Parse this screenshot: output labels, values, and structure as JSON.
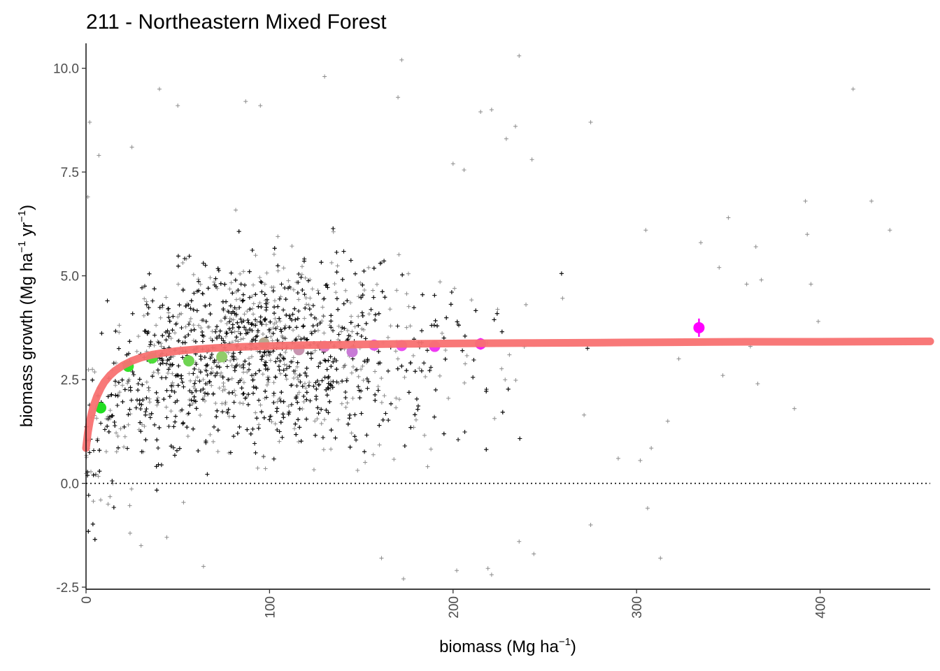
{
  "chart_data": {
    "type": "scatter",
    "title": "211 - Northeastern Mixed Forest",
    "xlabel": {
      "main": "biomass (Mg ha",
      "sup": "−1",
      "close": ")"
    },
    "ylabel": {
      "main": "biomass growth (Mg ha",
      "sup1": "−1",
      "mid": " yr",
      "sup2": "−1",
      "close": ")"
    },
    "xlim": [
      0,
      460
    ],
    "ylim": [
      -2.55,
      10.6
    ],
    "x_ticks": [
      0,
      100,
      200,
      300,
      400
    ],
    "x_tick_labels": [
      "0",
      "100",
      "200",
      "300",
      "400"
    ],
    "y_ticks": [
      -2.5,
      0,
      2.5,
      5,
      7.5,
      10
    ],
    "y_tick_labels": [
      "-2.5",
      "0.0",
      "2.5",
      "5.0",
      "7.5",
      "10.0"
    ],
    "grid": false,
    "reference_line": {
      "y": 0,
      "style": "dotted",
      "color": "#000000"
    },
    "raw_points": {
      "marker": "plus",
      "color": "#000000",
      "opacity": 0.45,
      "approx_count": 4500,
      "distribution_note": "dense cloud, biomass 0-290, growth -2.3 to 10.3, centered near growth 3",
      "sparse_outliers": [
        [
          236,
          10.3
        ],
        [
          172,
          10.2
        ],
        [
          418,
          9.5
        ],
        [
          130,
          9.8
        ],
        [
          40,
          9.5
        ],
        [
          87,
          9.2
        ],
        [
          50,
          9.1
        ],
        [
          221,
          9.0
        ],
        [
          215,
          8.95
        ],
        [
          2,
          8.7
        ],
        [
          275,
          8.7
        ],
        [
          234,
          8.6
        ],
        [
          229,
          8.3
        ],
        [
          7,
          7.9
        ],
        [
          25,
          8.1
        ],
        [
          243,
          7.8
        ],
        [
          200,
          7.7
        ],
        [
          206,
          7.55
        ],
        [
          1,
          6.9
        ],
        [
          428,
          6.8
        ],
        [
          392,
          6.8
        ],
        [
          438,
          6.1
        ],
        [
          393,
          6.0
        ],
        [
          335,
          5.8
        ],
        [
          350,
          6.4
        ],
        [
          305,
          6.1
        ],
        [
          365,
          5.7
        ],
        [
          368,
          4.9
        ],
        [
          345,
          5.2
        ],
        [
          360,
          4.8
        ],
        [
          395,
          4.8
        ],
        [
          399,
          3.9
        ],
        [
          366,
          2.4
        ],
        [
          347,
          2.6
        ],
        [
          386,
          1.8
        ],
        [
          362,
          3.3
        ],
        [
          323,
          3.0
        ],
        [
          308,
          0.85
        ],
        [
          317,
          1.5
        ],
        [
          290,
          0.6
        ],
        [
          302,
          0.55
        ],
        [
          306,
          -0.6
        ],
        [
          313,
          -1.8
        ],
        [
          275,
          -1.0
        ],
        [
          244,
          -1.7
        ],
        [
          236,
          -1.4
        ],
        [
          221,
          -2.2
        ],
        [
          219,
          -2.05
        ],
        [
          202,
          -2.1
        ],
        [
          173,
          -2.3
        ],
        [
          161,
          -1.8
        ],
        [
          64,
          -2.0
        ],
        [
          30,
          -1.5
        ],
        [
          12,
          -0.5
        ],
        [
          8,
          -0.4
        ],
        [
          24,
          -1.2
        ],
        [
          44,
          -1.3
        ],
        [
          170,
          9.3
        ],
        [
          95,
          9.1
        ]
      ]
    },
    "series": [
      {
        "name": "",
        "type": "fit-curve",
        "color": "#f87171",
        "opacity": 0.95,
        "x": [
          0,
          1,
          2,
          3,
          4,
          6,
          8,
          10,
          13,
          16,
          20,
          25,
          30,
          36,
          43,
          50,
          60,
          70,
          85,
          100,
          120,
          140,
          170,
          200,
          240,
          280,
          320,
          360,
          400,
          460
        ],
        "values": [
          0.85,
          1.22,
          1.48,
          1.68,
          1.85,
          2.1,
          2.29,
          2.44,
          2.6,
          2.72,
          2.84,
          2.95,
          3.03,
          3.1,
          3.15,
          3.19,
          3.23,
          3.26,
          3.29,
          3.31,
          3.33,
          3.34,
          3.36,
          3.37,
          3.38,
          3.39,
          3.4,
          3.41,
          3.41,
          3.42
        ]
      },
      {
        "name": "",
        "type": "binned-means",
        "points": [
          {
            "x": 8,
            "y": 1.82,
            "color": "#22dd22",
            "err": 0.12
          },
          {
            "x": 23,
            "y": 2.82,
            "color": "#35e02a",
            "err": 0.1
          },
          {
            "x": 36,
            "y": 3.02,
            "color": "#4ddc3a",
            "err": 0.09
          },
          {
            "x": 56,
            "y": 2.95,
            "color": "#6fd452",
            "err": 0.07
          },
          {
            "x": 74,
            "y": 3.05,
            "color": "#92cc6a",
            "err": 0.06
          },
          {
            "x": 97,
            "y": 3.38,
            "color": "#b5aa90",
            "err": 0.06
          },
          {
            "x": 116,
            "y": 3.22,
            "color": "#c794b0",
            "err": 0.07
          },
          {
            "x": 130,
            "y": 3.3,
            "color": "#d77ec4",
            "err": 0.07
          },
          {
            "x": 145,
            "y": 3.17,
            "color": "#c87ad6",
            "err": 0.08
          },
          {
            "x": 157,
            "y": 3.33,
            "color": "#e05ce8",
            "err": 0.08
          },
          {
            "x": 172,
            "y": 3.32,
            "color": "#e84ef0",
            "err": 0.09
          },
          {
            "x": 190,
            "y": 3.3,
            "color": "#ee38f2",
            "err": 0.11
          },
          {
            "x": 215,
            "y": 3.36,
            "color": "#f41ef8",
            "err": 0.14
          },
          {
            "x": 334,
            "y": 3.75,
            "color": "#ff00ff",
            "err": 0.22
          }
        ]
      }
    ]
  }
}
